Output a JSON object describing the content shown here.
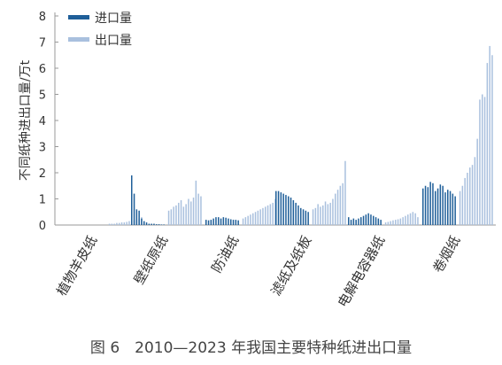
{
  "chart_data": {
    "type": "bar",
    "ylabel": "不同纸种进出口量/万t",
    "ylim": [
      0,
      8
    ],
    "yticks": [
      0,
      1,
      2,
      3,
      4,
      5,
      6,
      7,
      8
    ],
    "grid": false,
    "legend_position": "top-left",
    "years": "2010—2023",
    "categories": [
      "植物羊皮纸",
      "壁纸原纸",
      "防油纸",
      "滤纸及纸板",
      "电解电容器纸",
      "卷烟纸"
    ],
    "series": [
      {
        "name": "进口量",
        "color": "#1f5f99",
        "values": [
          [
            0,
            0,
            0,
            0,
            0,
            0,
            0,
            0,
            0,
            0,
            0,
            0,
            0,
            0
          ],
          [
            1.9,
            1.2,
            0.6,
            0.55,
            0.25,
            0.15,
            0.1,
            0.05,
            0.05,
            0.05,
            0.03,
            0.03,
            0.02,
            0.02
          ],
          [
            0.2,
            0.18,
            0.2,
            0.25,
            0.3,
            0.3,
            0.25,
            0.3,
            0.28,
            0.25,
            0.22,
            0.2,
            0.2,
            0.18
          ],
          [
            1.3,
            1.3,
            1.25,
            1.2,
            1.15,
            1.1,
            1.05,
            0.95,
            0.85,
            0.75,
            0.65,
            0.6,
            0.55,
            0.5
          ],
          [
            0.3,
            0.2,
            0.25,
            0.2,
            0.25,
            0.3,
            0.35,
            0.4,
            0.45,
            0.4,
            0.35,
            0.3,
            0.25,
            0.2
          ],
          [
            1.4,
            1.5,
            1.45,
            1.65,
            1.6,
            1.3,
            1.4,
            1.55,
            1.5,
            1.25,
            1.35,
            1.3,
            1.2,
            1.1
          ]
        ]
      },
      {
        "name": "出口量",
        "color": "#a9c0de",
        "values": [
          [
            0.05,
            0.05,
            0.05,
            0.08,
            0.08,
            0.1,
            0.1,
            0.12,
            0.15,
            0.15,
            0.18,
            0.2,
            0.25,
            0.3
          ],
          [
            0.55,
            0.6,
            0.7,
            0.75,
            0.85,
            0.95,
            0.7,
            0.8,
            1.0,
            0.9,
            1.05,
            1.7,
            1.2,
            1.1
          ],
          [
            0.25,
            0.3,
            0.35,
            0.4,
            0.45,
            0.5,
            0.55,
            0.6,
            0.65,
            0.7,
            0.75,
            0.8,
            0.85,
            1.0
          ],
          [
            0.6,
            0.65,
            0.8,
            0.7,
            0.75,
            0.9,
            0.8,
            0.85,
            1.0,
            1.2,
            1.35,
            1.5,
            1.6,
            2.45
          ],
          [
            0.1,
            0.12,
            0.15,
            0.18,
            0.2,
            0.22,
            0.25,
            0.3,
            0.35,
            0.4,
            0.45,
            0.5,
            0.45,
            0.3
          ],
          [
            1.3,
            1.5,
            1.8,
            2.0,
            2.2,
            2.3,
            2.6,
            3.3,
            4.8,
            5.0,
            4.9,
            6.2,
            6.85,
            6.5
          ]
        ]
      }
    ]
  },
  "caption": "图 6　2010—2023 年我国主要特种纸进出口量"
}
